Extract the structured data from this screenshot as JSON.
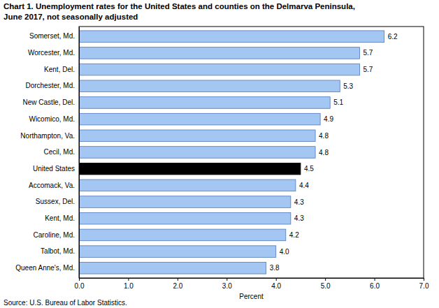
{
  "chart_data": {
    "type": "bar",
    "orientation": "horizontal",
    "title": [
      "Chart 1. Unemployment rates for the United States and counties on the Delmarva Peninsula,",
      "June 2017, not seasonally adjusted"
    ],
    "x_label": "Percent",
    "annotations": [
      "Source: U.S. Bureau of Labor Statistics."
    ],
    "categories": [
      "Somerset, Md.",
      "Worcester, Md.",
      "Kent, Del.",
      "Dorchester, Md.",
      "New Castle, Del.",
      "Wicomico, Md.",
      "Northampton, Va.",
      "Cecil, Md.",
      "United States",
      "Accomack, Va.",
      "Sussex, Del.",
      "Kent, Md.",
      "Caroline, Md.",
      "Talbot, Md.",
      "Queen Anne's, Md."
    ],
    "values": [
      6.2,
      5.7,
      5.7,
      5.3,
      5.1,
      4.9,
      4.8,
      4.8,
      4.5,
      4.4,
      4.3,
      4.3,
      4.2,
      4.0,
      3.8
    ],
    "value_labels": [
      "6.2",
      "5.7",
      "5.7",
      "5.3",
      "5.1",
      "4.9",
      "4.8",
      "4.8",
      "4.5",
      "4.4",
      "4.3",
      "4.3",
      "4.2",
      "4.0",
      "3.8"
    ],
    "colors": [
      "#a4c6f2",
      "#a4c6f2",
      "#a4c6f2",
      "#a4c6f2",
      "#a4c6f2",
      "#a4c6f2",
      "#a4c6f2",
      "#a4c6f2",
      "#000000",
      "#a4c6f2",
      "#a4c6f2",
      "#a4c6f2",
      "#a4c6f2",
      "#a4c6f2",
      "#a4c6f2"
    ],
    "xlim": [
      0,
      7
    ],
    "xticks": [
      {
        "value": 0,
        "label": "0.0"
      },
      {
        "value": 1,
        "label": "1.0"
      },
      {
        "value": 2,
        "label": "2.0"
      },
      {
        "value": 3,
        "label": "3.0"
      },
      {
        "value": 4,
        "label": "4.0"
      },
      {
        "value": 5,
        "label": "5.0"
      },
      {
        "value": 6,
        "label": "6.0"
      },
      {
        "value": 7,
        "label": "7.0"
      }
    ],
    "data_labels": true,
    "grid": false
  }
}
